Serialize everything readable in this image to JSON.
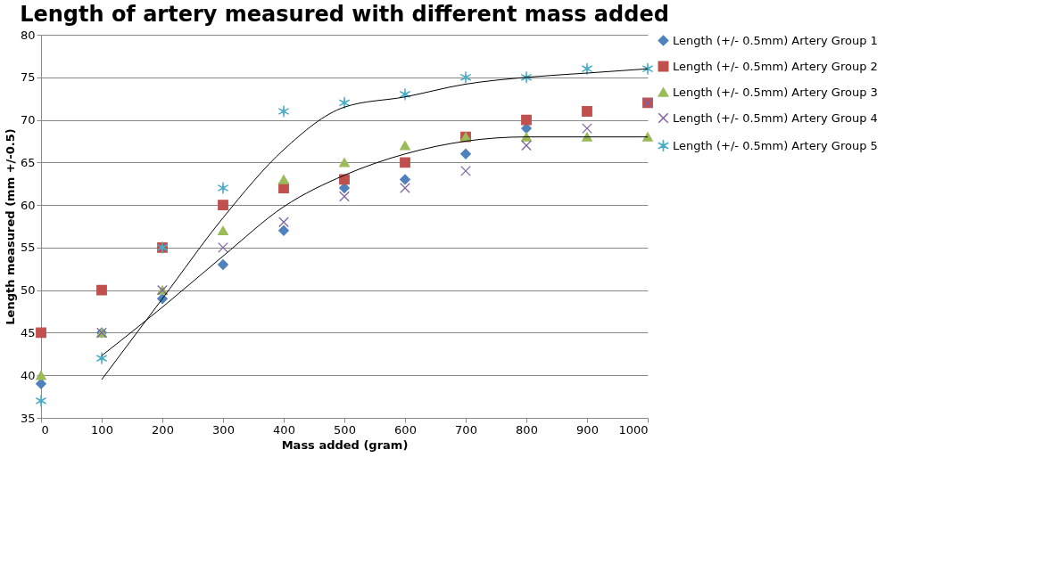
{
  "chart_data": {
    "type": "scatter",
    "title": "Length of artery measured with different mass added",
    "xlabel": "Mass added (gram)",
    "ylabel": "Length measured (mm +/-0.5)",
    "x": [
      0,
      100,
      200,
      300,
      400,
      500,
      600,
      700,
      800,
      900,
      1000
    ],
    "xlim": [
      0,
      1000
    ],
    "xticks": [
      0,
      100,
      200,
      300,
      400,
      500,
      600,
      700,
      800,
      900,
      {
        "value": 1000,
        "label": "1000"
      }
    ],
    "ylim": [
      35,
      80
    ],
    "yticks": [
      35,
      40,
      45,
      50,
      55,
      60,
      65,
      70,
      75,
      80
    ],
    "grid": "y",
    "legend": "right",
    "series": [
      {
        "name": "Length (+/- 0.5mm) Artery Group 1",
        "color": "#4f81bd",
        "marker": "diamond",
        "values": [
          39,
          45,
          49,
          53,
          57,
          62,
          63,
          66,
          69,
          null,
          null
        ]
      },
      {
        "name": "Length (+/- 0.5mm) Artery Group 2",
        "color": "#c0504d",
        "marker": "square",
        "values": [
          45,
          50,
          55,
          60,
          62,
          63,
          65,
          68,
          70,
          71,
          72
        ]
      },
      {
        "name": "Length (+/- 0.5mm) Artery Group 3",
        "color": "#9bbb59",
        "marker": "triangle",
        "values": [
          40,
          45,
          50,
          57,
          63,
          65,
          67,
          68,
          68,
          68,
          68
        ]
      },
      {
        "name": "Length (+/- 0.5mm) Artery Group 4",
        "color": "#8064a2",
        "marker": "cross",
        "values": [
          null,
          45,
          50,
          55,
          58,
          61,
          62,
          64,
          67,
          69,
          72
        ]
      },
      {
        "name": "Length (+/- 0.5mm) Artery Group 5",
        "color": "#4bacc6",
        "values": [
          37,
          42,
          55,
          62,
          71,
          72,
          73,
          75,
          75,
          76,
          76
        ]
      },
      {
        "type": "line",
        "color": "#000000",
        "x": [
          100,
          200,
          300,
          400,
          500,
          600,
          700,
          800,
          900,
          1000
        ],
        "values": [
          39.5,
          49,
          58.5,
          66.5,
          71.5,
          72.7,
          74.2,
          75,
          75.5,
          76
        ]
      },
      {
        "type": "line",
        "color": "#000000",
        "x": [
          100,
          200,
          300,
          400,
          500,
          600,
          700,
          800,
          900,
          1000
        ],
        "values": [
          42.3,
          48,
          54,
          59.8,
          63.5,
          66,
          67.5,
          68,
          68,
          68
        ]
      }
    ]
  }
}
